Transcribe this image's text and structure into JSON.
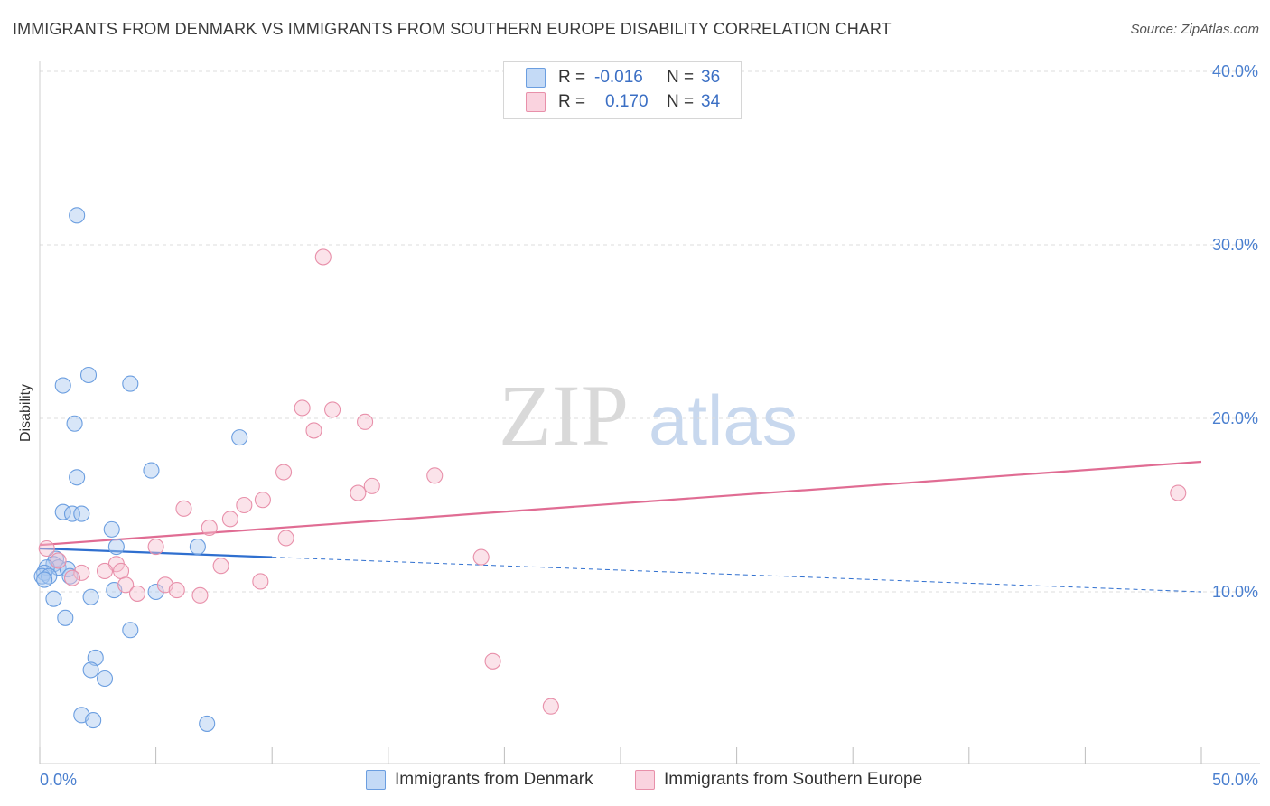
{
  "header": {
    "title": "IMMIGRANTS FROM DENMARK VS IMMIGRANTS FROM SOUTHERN EUROPE DISABILITY CORRELATION CHART",
    "source": "Source: ZipAtlas.com"
  },
  "watermark": {
    "zip": "ZIP",
    "atlas": "atlas"
  },
  "legend": {
    "rows": [
      {
        "r_label": "R =",
        "r_value": "-0.016",
        "n_label": "N =",
        "n_value": "36",
        "color": "#a8c8f0",
        "border": "#6b9ee0"
      },
      {
        "r_label": "R =",
        "r_value": "0.170",
        "n_label": "N =",
        "n_value": "34",
        "color": "#f7c0d0",
        "border": "#e890aa"
      }
    ]
  },
  "bottom_legend": {
    "denmark": "Immigrants from Denmark",
    "southern_europe": "Immigrants from Southern Europe"
  },
  "chart_data": {
    "type": "scatter",
    "title": "IMMIGRANTS FROM DENMARK VS IMMIGRANTS FROM SOUTHERN EUROPE DISABILITY CORRELATION CHART",
    "xlabel": "",
    "ylabel": "Disability",
    "xlim": [
      0,
      50
    ],
    "ylim": [
      0,
      42
    ],
    "x_tick_labels": [
      "0.0%",
      "50.0%"
    ],
    "y_ticks": [
      10,
      20,
      30,
      40
    ],
    "y_tick_labels": [
      "10.0%",
      "20.0%",
      "30.0%",
      "40.0%"
    ],
    "grid": true,
    "series": [
      {
        "name": "Immigrants from Denmark",
        "color": "#6b9ee0",
        "fill": "#a8c8f0",
        "points": [
          [
            1.6,
            31.7
          ],
          [
            2.1,
            22.5
          ],
          [
            3.9,
            22.0
          ],
          [
            1.0,
            21.9
          ],
          [
            1.5,
            19.7
          ],
          [
            8.6,
            18.9
          ],
          [
            1.6,
            16.6
          ],
          [
            4.8,
            17.0
          ],
          [
            1.0,
            14.6
          ],
          [
            1.4,
            14.5
          ],
          [
            1.8,
            14.5
          ],
          [
            3.1,
            13.6
          ],
          [
            3.3,
            12.6
          ],
          [
            6.8,
            12.6
          ],
          [
            0.7,
            11.9
          ],
          [
            0.6,
            11.6
          ],
          [
            0.8,
            11.4
          ],
          [
            0.3,
            11.4
          ],
          [
            0.2,
            11.1
          ],
          [
            0.1,
            10.9
          ],
          [
            0.4,
            10.9
          ],
          [
            0.2,
            10.7
          ],
          [
            1.2,
            11.3
          ],
          [
            1.3,
            10.9
          ],
          [
            3.2,
            10.1
          ],
          [
            5.0,
            10.0
          ],
          [
            0.6,
            9.6
          ],
          [
            2.2,
            9.7
          ],
          [
            1.1,
            8.5
          ],
          [
            3.9,
            7.8
          ],
          [
            2.4,
            6.2
          ],
          [
            2.2,
            5.5
          ],
          [
            2.8,
            5.0
          ],
          [
            1.8,
            2.9
          ],
          [
            2.3,
            2.6
          ],
          [
            7.2,
            2.4
          ]
        ]
      },
      {
        "name": "Immigrants from Southern Europe",
        "color": "#e890aa",
        "fill": "#f7c0d0",
        "points": [
          [
            12.2,
            29.3
          ],
          [
            11.3,
            20.6
          ],
          [
            12.6,
            20.5
          ],
          [
            14.0,
            19.8
          ],
          [
            11.8,
            19.3
          ],
          [
            10.5,
            16.9
          ],
          [
            17.0,
            16.7
          ],
          [
            14.3,
            16.1
          ],
          [
            13.7,
            15.7
          ],
          [
            9.6,
            15.3
          ],
          [
            8.8,
            15.0
          ],
          [
            6.2,
            14.8
          ],
          [
            8.2,
            14.2
          ],
          [
            7.3,
            13.7
          ],
          [
            10.6,
            13.1
          ],
          [
            49.0,
            15.7
          ],
          [
            0.3,
            12.5
          ],
          [
            5.0,
            12.6
          ],
          [
            19.0,
            12.0
          ],
          [
            0.8,
            11.8
          ],
          [
            3.3,
            11.6
          ],
          [
            7.8,
            11.5
          ],
          [
            2.8,
            11.2
          ],
          [
            3.5,
            11.2
          ],
          [
            1.8,
            11.1
          ],
          [
            1.4,
            10.8
          ],
          [
            9.5,
            10.6
          ],
          [
            5.4,
            10.4
          ],
          [
            3.7,
            10.4
          ],
          [
            5.9,
            10.1
          ],
          [
            4.2,
            9.9
          ],
          [
            6.9,
            9.8
          ],
          [
            19.5,
            6.0
          ],
          [
            22.0,
            3.4
          ]
        ]
      }
    ],
    "trend_lines": [
      {
        "series": "Immigrants from Denmark",
        "solid": [
          [
            0,
            12.5
          ],
          [
            10,
            12.0
          ]
        ],
        "dashed": [
          [
            10,
            12.0
          ],
          [
            50,
            10.0
          ]
        ],
        "color": "#2f6fcf"
      },
      {
        "series": "Immigrants from Southern Europe",
        "solid": [
          [
            0,
            12.7
          ],
          [
            50,
            17.5
          ]
        ],
        "color": "#e06c93"
      }
    ]
  }
}
